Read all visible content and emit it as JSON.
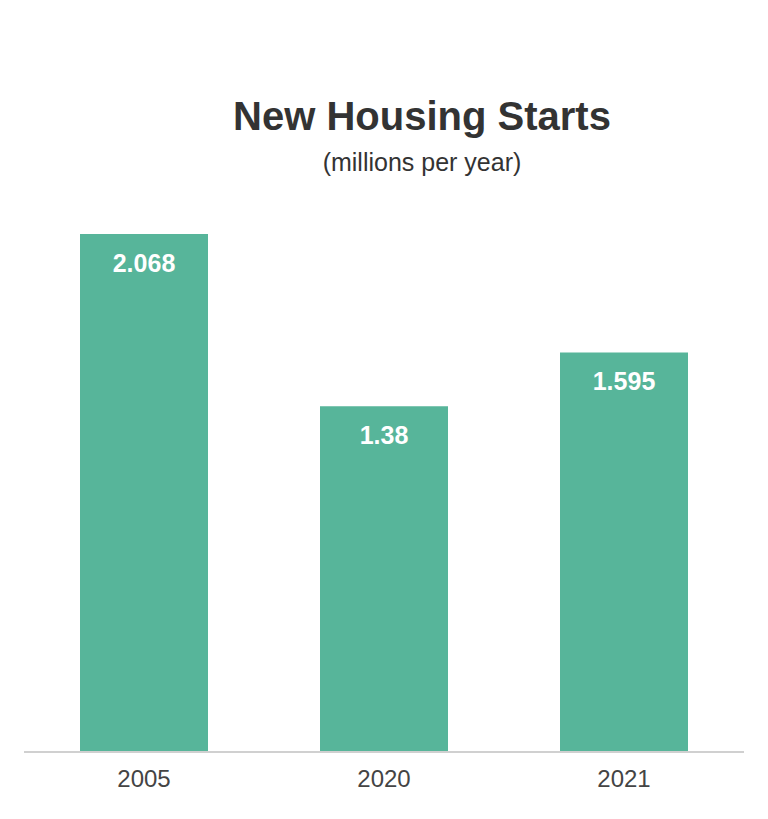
{
  "chart_data": {
    "type": "bar",
    "title": "New Housing Starts",
    "subtitle": "(millions per year)",
    "categories": [
      "2005",
      "2020",
      "2021"
    ],
    "values": [
      2.068,
      1.38,
      1.595
    ],
    "color": "#57b59a",
    "data_labels": true,
    "tick_labels": "x",
    "grid": false
  }
}
